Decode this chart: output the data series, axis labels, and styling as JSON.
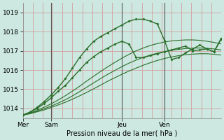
{
  "title": "Pression niveau de la mer( hPa )",
  "bg_color": "#cce8e0",
  "ylim": [
    1013.5,
    1019.5
  ],
  "yticks": [
    1014,
    1015,
    1016,
    1017,
    1018,
    1019
  ],
  "day_labels": [
    "Mer",
    "Sam",
    "Jeu",
    "Ven"
  ],
  "day_positions": [
    0,
    4,
    14,
    20
  ],
  "vline_positions": [
    4,
    14,
    20
  ],
  "line_color": "#2a6e2a",
  "xlim": [
    0,
    28
  ],
  "smooth_series": [
    {
      "x": [
        0,
        1,
        2,
        3,
        4,
        5,
        6,
        7,
        8,
        9,
        10,
        11,
        12,
        13,
        14,
        15,
        16,
        17,
        18,
        19,
        20,
        21,
        22,
        23,
        24,
        25,
        26,
        27,
        28
      ],
      "y": [
        1013.65,
        1013.72,
        1013.82,
        1013.92,
        1014.05,
        1014.18,
        1014.32,
        1014.48,
        1014.65,
        1014.83,
        1015.02,
        1015.22,
        1015.42,
        1015.6,
        1015.78,
        1015.95,
        1016.1,
        1016.25,
        1016.38,
        1016.5,
        1016.6,
        1016.68,
        1016.75,
        1016.8,
        1016.83,
        1016.85,
        1016.85,
        1016.82,
        1016.78
      ]
    },
    {
      "x": [
        0,
        1,
        2,
        3,
        4,
        5,
        6,
        7,
        8,
        9,
        10,
        11,
        12,
        13,
        14,
        15,
        16,
        17,
        18,
        19,
        20,
        21,
        22,
        23,
        24,
        25,
        26,
        27,
        28
      ],
      "y": [
        1013.65,
        1013.74,
        1013.85,
        1013.98,
        1014.12,
        1014.28,
        1014.45,
        1014.65,
        1014.87,
        1015.1,
        1015.33,
        1015.56,
        1015.78,
        1015.98,
        1016.18,
        1016.36,
        1016.52,
        1016.66,
        1016.78,
        1016.88,
        1016.96,
        1017.03,
        1017.08,
        1017.12,
        1017.14,
        1017.15,
        1017.13,
        1017.1,
        1017.05
      ]
    },
    {
      "x": [
        0,
        1,
        2,
        3,
        4,
        5,
        6,
        7,
        8,
        9,
        10,
        11,
        12,
        13,
        14,
        15,
        16,
        17,
        18,
        19,
        20,
        21,
        22,
        23,
        24,
        25,
        26,
        27,
        28
      ],
      "y": [
        1013.65,
        1013.76,
        1013.9,
        1014.06,
        1014.24,
        1014.44,
        1014.66,
        1014.9,
        1015.15,
        1015.42,
        1015.68,
        1015.93,
        1016.17,
        1016.4,
        1016.62,
        1016.82,
        1017.0,
        1017.15,
        1017.28,
        1017.38,
        1017.46,
        1017.52,
        1017.55,
        1017.57,
        1017.57,
        1017.55,
        1017.5,
        1017.44,
        1017.36
      ]
    }
  ],
  "marker_series": [
    {
      "x": [
        0,
        1,
        2,
        3,
        4,
        5,
        6,
        7,
        8,
        9,
        10,
        11,
        12,
        13,
        14,
        15,
        16,
        17,
        18,
        19,
        20,
        21,
        22,
        23,
        24,
        25,
        26,
        27,
        28
      ],
      "y": [
        1013.65,
        1013.8,
        1014.0,
        1014.25,
        1014.55,
        1014.9,
        1015.2,
        1015.6,
        1016.0,
        1016.4,
        1016.7,
        1016.95,
        1017.15,
        1017.35,
        1017.5,
        1017.35,
        1016.65,
        1016.65,
        1016.75,
        1016.85,
        1016.95,
        1017.05,
        1017.15,
        1017.25,
        1017.0,
        1017.05,
        1017.1,
        1016.95,
        1017.65
      ]
    },
    {
      "x": [
        0,
        1,
        2,
        3,
        4,
        5,
        6,
        7,
        8,
        9,
        10,
        11,
        12,
        13,
        14,
        15,
        16,
        17,
        18,
        19,
        20,
        21,
        22,
        23,
        24,
        25,
        26,
        27,
        28
      ],
      "y": [
        1013.65,
        1013.8,
        1014.05,
        1014.35,
        1014.7,
        1015.1,
        1015.55,
        1016.1,
        1016.65,
        1017.1,
        1017.5,
        1017.75,
        1017.95,
        1018.15,
        1018.35,
        1018.55,
        1018.65,
        1018.65,
        1018.55,
        1018.4,
        1017.55,
        1016.55,
        1016.65,
        1016.9,
        1017.1,
        1017.3,
        1017.1,
        1016.95,
        1017.6
      ]
    }
  ]
}
